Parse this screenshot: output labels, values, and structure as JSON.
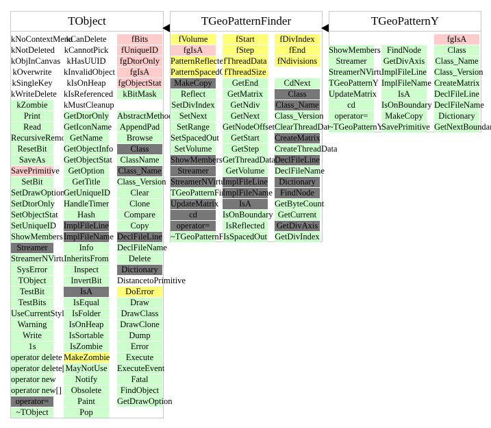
{
  "colors": {
    "method": "#ccffcc",
    "member": "#ffcccc",
    "dark": "#777777",
    "yellow": "#ffff77",
    "white": "#ffffff"
  },
  "classes": [
    {
      "title": "TObject",
      "columns": [
        {
          "items": [
            {
              "t": "kNoContextMenu",
              "s": "white"
            },
            {
              "t": "kNotDeleted",
              "s": "white"
            },
            {
              "t": "kObjInCanvas",
              "s": "white"
            },
            {
              "t": "kOverwrite",
              "s": "white"
            },
            {
              "t": "kSingleKey",
              "s": "white"
            },
            {
              "t": "kWriteDelete",
              "s": "white"
            },
            {
              "t": "kZombie",
              "s": "method"
            },
            {
              "t": "Print",
              "s": "method"
            },
            {
              "t": "Read",
              "s": "method"
            },
            {
              "t": "RecursiveRemove",
              "s": "method"
            },
            {
              "t": "ResetBit",
              "s": "method"
            },
            {
              "t": "SaveAs",
              "s": "method"
            },
            {
              "t": "SavePrimitive",
              "s": "member"
            },
            {
              "t": "SetBit",
              "s": "method"
            },
            {
              "t": "SetDrawOption",
              "s": "method"
            },
            {
              "t": "SetDtorOnly",
              "s": "method"
            },
            {
              "t": "SetObjectStat",
              "s": "method"
            },
            {
              "t": "SetUniqueID",
              "s": "method"
            },
            {
              "t": "ShowMembers",
              "s": "method"
            },
            {
              "t": "Streamer",
              "s": "dark"
            },
            {
              "t": "StreamerNVirtual",
              "s": "method"
            },
            {
              "t": "SysError",
              "s": "method"
            },
            {
              "t": "TObject",
              "s": "method"
            },
            {
              "t": "TestBit",
              "s": "method"
            },
            {
              "t": "TestBits",
              "s": "method"
            },
            {
              "t": "UseCurrentStyle",
              "s": "method"
            },
            {
              "t": "Warning",
              "s": "method"
            },
            {
              "t": "Write",
              "s": "method"
            },
            {
              "t": "1s",
              "s": "method"
            },
            {
              "t": "operator delete",
              "s": "method"
            },
            {
              "t": "operator delete[]",
              "s": "method"
            },
            {
              "t": "operator new",
              "s": "method"
            },
            {
              "t": "operator new[]",
              "s": "method"
            },
            {
              "t": "operator=",
              "s": "dark"
            },
            {
              "t": "~TObject",
              "s": "method"
            }
          ]
        },
        {
          "items": [
            {
              "t": "kCanDelete",
              "s": "white"
            },
            {
              "t": "kCannotPick",
              "s": "white"
            },
            {
              "t": "kHasUUID",
              "s": "white"
            },
            {
              "t": "kInvalidObject",
              "s": "white"
            },
            {
              "t": "kIsOnHeap",
              "s": "white"
            },
            {
              "t": "kIsReferenced",
              "s": "white"
            },
            {
              "t": "kMustCleanup",
              "s": "white"
            },
            {
              "t": "GetDtorOnly",
              "s": "method"
            },
            {
              "t": "GetIconName",
              "s": "method"
            },
            {
              "t": "GetName",
              "s": "method"
            },
            {
              "t": "GetObjectInfo",
              "s": "method"
            },
            {
              "t": "GetObjectStat",
              "s": "method"
            },
            {
              "t": "GetOption",
              "s": "method"
            },
            {
              "t": "GetTitle",
              "s": "method"
            },
            {
              "t": "GetUniqueID",
              "s": "method"
            },
            {
              "t": "HandleTimer",
              "s": "method"
            },
            {
              "t": "Hash",
              "s": "method"
            },
            {
              "t": "ImplFileLine",
              "s": "dark"
            },
            {
              "t": "ImplFileName",
              "s": "dark"
            },
            {
              "t": "Info",
              "s": "method"
            },
            {
              "t": "InheritsFrom",
              "s": "method"
            },
            {
              "t": "Inspect",
              "s": "method"
            },
            {
              "t": "InvertBit",
              "s": "method"
            },
            {
              "t": "IsA",
              "s": "dark"
            },
            {
              "t": "IsEqual",
              "s": "method"
            },
            {
              "t": "IsFolder",
              "s": "method"
            },
            {
              "t": "IsOnHeap",
              "s": "method"
            },
            {
              "t": "IsSortable",
              "s": "method"
            },
            {
              "t": "IsZombie",
              "s": "method"
            },
            {
              "t": "MakeZombie",
              "s": "yellow"
            },
            {
              "t": "MayNotUse",
              "s": "method"
            },
            {
              "t": "Notify",
              "s": "method"
            },
            {
              "t": "Obsolete",
              "s": "method"
            },
            {
              "t": "Paint",
              "s": "method"
            },
            {
              "t": "Pop",
              "s": "method"
            }
          ]
        },
        {
          "items": [
            {
              "t": "fBits",
              "s": "member"
            },
            {
              "t": "fUniqueID",
              "s": "member"
            },
            {
              "t": "fgDtorOnly",
              "s": "member"
            },
            {
              "t": "fgIsA",
              "s": "member"
            },
            {
              "t": "fgObjectStat",
              "s": "member"
            },
            {
              "t": "kBitMask",
              "s": "method"
            },
            {
              "t": "",
              "s": "none"
            },
            {
              "t": "AbstractMethod",
              "s": "method"
            },
            {
              "t": "AppendPad",
              "s": "method"
            },
            {
              "t": "Browse",
              "s": "method"
            },
            {
              "t": "Class",
              "s": "dark"
            },
            {
              "t": "ClassName",
              "s": "method"
            },
            {
              "t": "Class_Name",
              "s": "dark"
            },
            {
              "t": "Class_Version",
              "s": "method"
            },
            {
              "t": "Clear",
              "s": "method"
            },
            {
              "t": "Clone",
              "s": "method"
            },
            {
              "t": "Compare",
              "s": "method"
            },
            {
              "t": "Copy",
              "s": "method"
            },
            {
              "t": "DeclFileLine",
              "s": "dark"
            },
            {
              "t": "DeclFileName",
              "s": "method"
            },
            {
              "t": "Delete",
              "s": "method"
            },
            {
              "t": "Dictionary",
              "s": "dark"
            },
            {
              "t": "DistancetoPrimitive",
              "s": "white"
            },
            {
              "t": "DoError",
              "s": "yellow"
            },
            {
              "t": "Draw",
              "s": "method"
            },
            {
              "t": "DrawClass",
              "s": "method"
            },
            {
              "t": "DrawClone",
              "s": "method"
            },
            {
              "t": "Dump",
              "s": "method"
            },
            {
              "t": "Error",
              "s": "method"
            },
            {
              "t": "Execute",
              "s": "method"
            },
            {
              "t": "ExecuteEvent",
              "s": "method"
            },
            {
              "t": "Fatal",
              "s": "method"
            },
            {
              "t": "FindObject",
              "s": "method"
            },
            {
              "t": "GetDrawOption",
              "s": "method"
            }
          ]
        }
      ]
    },
    {
      "title": "TGeoPatternFinder",
      "columns": [
        {
          "items": [
            {
              "t": "fVolume",
              "s": "yellow"
            },
            {
              "t": "fgIsA",
              "s": "member"
            },
            {
              "t": "PatternReflected",
              "s": "yellow"
            },
            {
              "t": "PatternSpacedOut",
              "s": "yellow"
            },
            {
              "t": "MakeCopy",
              "s": "dark"
            },
            {
              "t": "Reflect",
              "s": "method"
            },
            {
              "t": "SetDivIndex",
              "s": "method"
            },
            {
              "t": "SetNext",
              "s": "method"
            },
            {
              "t": "SetRange",
              "s": "method"
            },
            {
              "t": "SetSpacedOut",
              "s": "method"
            },
            {
              "t": "SetVolume",
              "s": "method"
            },
            {
              "t": "ShowMembers",
              "s": "dark"
            },
            {
              "t": "Streamer",
              "s": "dark"
            },
            {
              "t": "StreamerNVirtual",
              "s": "dark"
            },
            {
              "t": "TGeoPatternFinder",
              "s": "method"
            },
            {
              "t": "UpdateMatrix",
              "s": "dark"
            },
            {
              "t": "cd",
              "s": "dark"
            },
            {
              "t": "operator=",
              "s": "dark"
            },
            {
              "t": "~TGeoPatternFinder",
              "s": "method"
            }
          ]
        },
        {
          "items": [
            {
              "t": "fStart",
              "s": "yellow"
            },
            {
              "t": "fStep",
              "s": "yellow"
            },
            {
              "t": "fThreadData",
              "s": "yellow"
            },
            {
              "t": "fThreadSize",
              "s": "yellow"
            },
            {
              "t": "GetEnd",
              "s": "method"
            },
            {
              "t": "GetMatrix",
              "s": "method"
            },
            {
              "t": "GetNdiv",
              "s": "method"
            },
            {
              "t": "GetNext",
              "s": "method"
            },
            {
              "t": "GetNodeOffset",
              "s": "method"
            },
            {
              "t": "GetStart",
              "s": "method"
            },
            {
              "t": "GetStep",
              "s": "method"
            },
            {
              "t": "GetThreadData",
              "s": "method"
            },
            {
              "t": "GetVolume",
              "s": "method"
            },
            {
              "t": "ImplFileLine",
              "s": "dark"
            },
            {
              "t": "ImplFileName",
              "s": "dark"
            },
            {
              "t": "IsA",
              "s": "dark"
            },
            {
              "t": "IsOnBoundary",
              "s": "method"
            },
            {
              "t": "IsReflected",
              "s": "method"
            },
            {
              "t": "IsSpacedOut",
              "s": "method"
            }
          ]
        },
        {
          "items": [
            {
              "t": "fDivIndex",
              "s": "yellow"
            },
            {
              "t": "fEnd",
              "s": "yellow"
            },
            {
              "t": "fNdivisions",
              "s": "yellow"
            },
            {
              "t": "",
              "s": "none"
            },
            {
              "t": "CdNext",
              "s": "method"
            },
            {
              "t": "Class",
              "s": "dark"
            },
            {
              "t": "Class_Name",
              "s": "dark"
            },
            {
              "t": "Class_Version",
              "s": "method"
            },
            {
              "t": "ClearThreadData",
              "s": "method"
            },
            {
              "t": "CreateMatrix",
              "s": "dark"
            },
            {
              "t": "CreateThreadData",
              "s": "method"
            },
            {
              "t": "DeclFileLine",
              "s": "dark"
            },
            {
              "t": "DeclFileName",
              "s": "method"
            },
            {
              "t": "Dictionary",
              "s": "dark"
            },
            {
              "t": "FindNode",
              "s": "dark"
            },
            {
              "t": "GetByteCount",
              "s": "method"
            },
            {
              "t": "GetCurrent",
              "s": "method"
            },
            {
              "t": "GetDivAxis",
              "s": "dark"
            },
            {
              "t": "GetDivIndex",
              "s": "method"
            }
          ]
        }
      ]
    },
    {
      "title": "TGeoPatternY",
      "columns": [
        {
          "items": [
            {
              "t": "",
              "s": "none"
            },
            {
              "t": "ShowMembers",
              "s": "method"
            },
            {
              "t": "Streamer",
              "s": "method"
            },
            {
              "t": "StreamerNVirtual",
              "s": "method"
            },
            {
              "t": "TGeoPatternY",
              "s": "method"
            },
            {
              "t": "UpdateMatrix",
              "s": "method"
            },
            {
              "t": "cd",
              "s": "method"
            },
            {
              "t": "operator=",
              "s": "method"
            },
            {
              "t": "~TGeoPatternY",
              "s": "method"
            }
          ]
        },
        {
          "items": [
            {
              "t": "",
              "s": "none"
            },
            {
              "t": "FindNode",
              "s": "method"
            },
            {
              "t": "GetDivAxis",
              "s": "method"
            },
            {
              "t": "ImplFileLine",
              "s": "method"
            },
            {
              "t": "ImplFileName",
              "s": "method"
            },
            {
              "t": "IsA",
              "s": "method"
            },
            {
              "t": "IsOnBoundary",
              "s": "method"
            },
            {
              "t": "MakeCopy",
              "s": "method"
            },
            {
              "t": "SavePrimitive",
              "s": "method"
            }
          ]
        },
        {
          "items": [
            {
              "t": "fgIsA",
              "s": "member"
            },
            {
              "t": "Class",
              "s": "method"
            },
            {
              "t": "Class_Name",
              "s": "method"
            },
            {
              "t": "Class_Version",
              "s": "method"
            },
            {
              "t": "CreateMatrix",
              "s": "method"
            },
            {
              "t": "DeclFileLine",
              "s": "method"
            },
            {
              "t": "DeclFileName",
              "s": "method"
            },
            {
              "t": "Dictionary",
              "s": "method"
            },
            {
              "t": "GetNextBoundary",
              "s": "method"
            }
          ]
        }
      ]
    }
  ]
}
